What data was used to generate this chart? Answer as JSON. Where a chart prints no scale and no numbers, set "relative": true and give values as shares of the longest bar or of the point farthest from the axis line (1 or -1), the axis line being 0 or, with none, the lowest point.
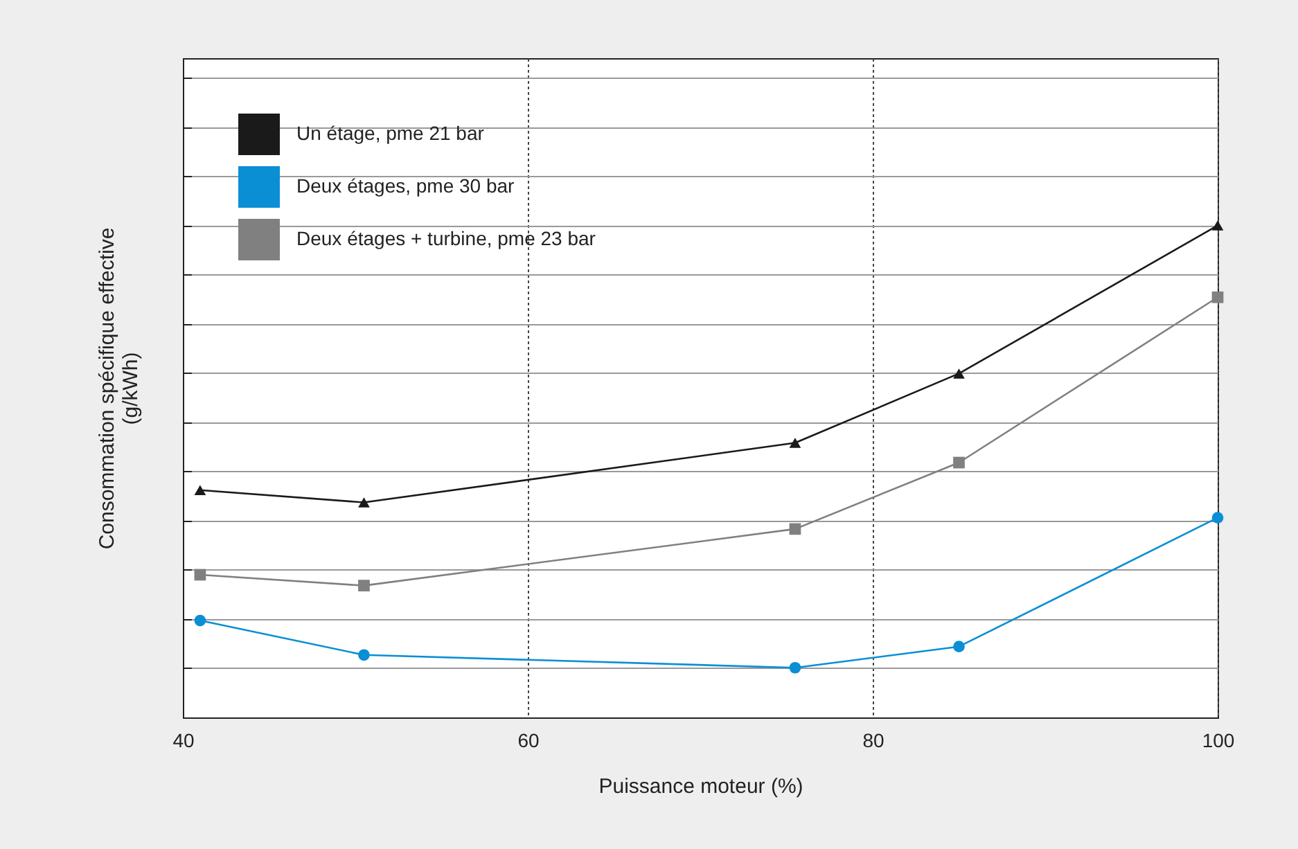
{
  "chart_data": {
    "type": "line",
    "relative": true,
    "xlabel": "Puissance moteur (%)",
    "ylabel": "Consommation spécifique effective\n(g/kWh)",
    "xlim": [
      40,
      100
    ],
    "xticks": [
      40,
      60,
      80,
      100
    ],
    "grid": true,
    "legend": "top left",
    "x": [
      41,
      50.5,
      75.5,
      85,
      100
    ],
    "series": [
      {
        "name": "Un étage, pme 21 bar",
        "color": "#1a1a1a",
        "marker": "triangle",
        "values": [
          0.462,
          0.437,
          0.558,
          0.699,
          1
        ]
      },
      {
        "name": "Deux étages, pme 30 bar",
        "color": "#0a8fd4",
        "marker": "circle",
        "values": [
          0.197,
          0.127,
          0.101,
          0.144,
          0.406
        ]
      },
      {
        "name": "Deux étages + turbine, pme 23 bar",
        "color": "#808080",
        "marker": "square",
        "values": [
          0.29,
          0.268,
          0.383,
          0.518,
          0.854
        ]
      }
    ]
  }
}
